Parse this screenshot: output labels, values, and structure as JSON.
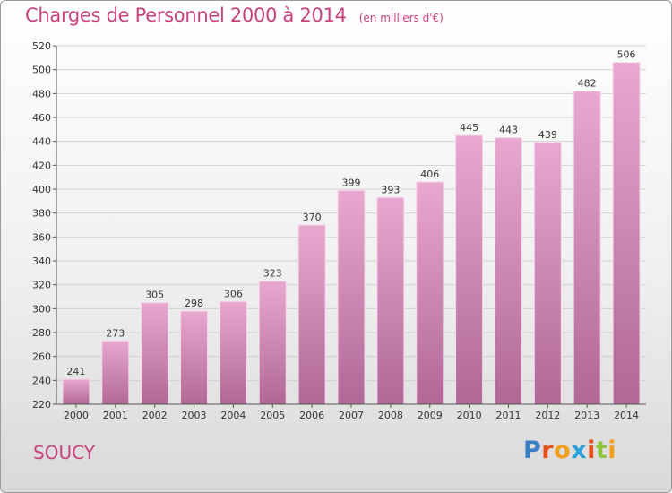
{
  "title": "Charges de Personnel 2000 à 2014",
  "subtitle": "(en milliers d'€)",
  "city": "SOUCY",
  "logo": {
    "text": "Proxiti",
    "colors": [
      "#3a7fc4",
      "#e8501a",
      "#f0a01e",
      "#2aa0d8",
      "#e8501a",
      "#8cc63f",
      "#f0a01e"
    ]
  },
  "colors": {
    "accent": "#c8437c",
    "bar_top": "#e8a8d0",
    "bar_bottom": "#b06896",
    "bar_edge": "#f6d8ea"
  },
  "chart_data": {
    "type": "bar",
    "categories": [
      "2000",
      "2001",
      "2002",
      "2003",
      "2004",
      "2005",
      "2006",
      "2007",
      "2008",
      "2009",
      "2010",
      "2011",
      "2012",
      "2013",
      "2014"
    ],
    "values": [
      241,
      273,
      305,
      298,
      306,
      323,
      370,
      399,
      393,
      406,
      445,
      443,
      439,
      482,
      506
    ],
    "ylim": [
      220,
      520
    ],
    "yticks": [
      220,
      240,
      260,
      280,
      300,
      320,
      340,
      360,
      380,
      400,
      420,
      440,
      460,
      480,
      500,
      520
    ],
    "grid": true,
    "title": "Charges de Personnel 2000 à 2014",
    "ylabel": "",
    "xlabel": ""
  }
}
